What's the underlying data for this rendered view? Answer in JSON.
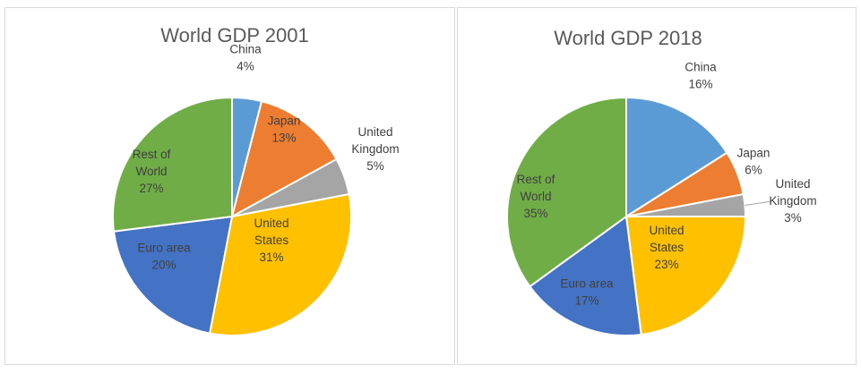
{
  "chart_data": [
    {
      "type": "pie",
      "title": "World GDP 2001",
      "categories": [
        "China",
        "Japan",
        "United Kingdom",
        "United States",
        "Euro area",
        "Rest of World"
      ],
      "values": [
        4,
        13,
        5,
        31,
        20,
        27
      ],
      "value_labels": [
        "4%",
        "13%",
        "5%",
        "31%",
        "20%",
        "27%"
      ],
      "label_lines": [
        [
          "China"
        ],
        [
          "Japan"
        ],
        [
          "United",
          "Kingdom"
        ],
        [
          "United",
          "States"
        ],
        [
          "Euro area"
        ],
        [
          "Rest of",
          "World"
        ]
      ],
      "colors": [
        "#5B9BD5",
        "#ED7D31",
        "#A5A5A5",
        "#FFC000",
        "#4472C4",
        "#70AD47"
      ]
    },
    {
      "type": "pie",
      "title": "World GDP 2018",
      "categories": [
        "China",
        "Japan",
        "United Kingdom",
        "United States",
        "Euro area",
        "Rest of World"
      ],
      "values": [
        16,
        6,
        3,
        23,
        17,
        35
      ],
      "value_labels": [
        "16%",
        "6%",
        "3%",
        "23%",
        "17%",
        "35%"
      ],
      "label_lines": [
        [
          "China"
        ],
        [
          "Japan"
        ],
        [
          "United",
          "Kingdom"
        ],
        [
          "United",
          "States"
        ],
        [
          "Euro area"
        ],
        [
          "Rest of",
          "World"
        ]
      ],
      "colors": [
        "#5B9BD5",
        "#ED7D31",
        "#A5A5A5",
        "#FFC000",
        "#4472C4",
        "#70AD47"
      ]
    }
  ]
}
